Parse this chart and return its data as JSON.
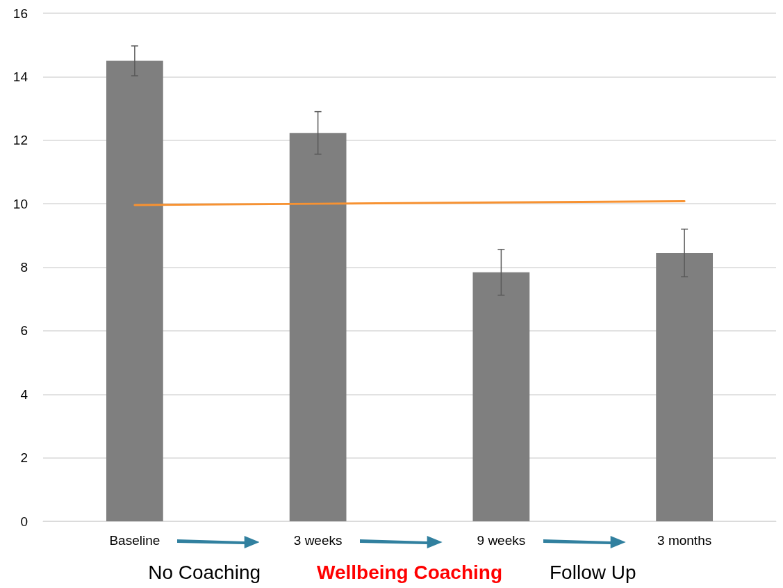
{
  "chart_data": {
    "type": "bar",
    "categories": [
      "Baseline",
      "3 weeks",
      "9 weeks",
      "3 months"
    ],
    "series": [
      {
        "color": "#7f7f7f",
        "values": [
          14.5,
          12.23,
          7.84,
          8.45
        ],
        "errors": [
          0.47,
          0.67,
          0.72,
          0.75
        ]
      },
      {
        "type": "line",
        "color": "#f79232",
        "values": [
          9.96,
          10.0,
          10.04,
          10.08
        ],
        "marker": "none",
        "line_style": "solid"
      }
    ],
    "ylim": [
      0,
      16
    ],
    "yticks": [
      0,
      2,
      4,
      6,
      8,
      10,
      12,
      14,
      16
    ],
    "grid": "y",
    "annotations": [
      "No Coaching",
      "Wellbeing Coaching",
      "Follow Up"
    ]
  }
}
